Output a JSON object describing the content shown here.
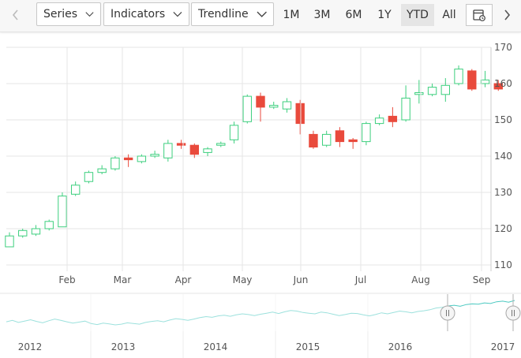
{
  "toolbar": {
    "series_label": "Series",
    "indicators_label": "Indicators",
    "trendline_label": "Trendline",
    "ranges": [
      "1M",
      "3M",
      "6M",
      "1Y",
      "YTD",
      "All"
    ],
    "selected_range": "YTD",
    "left_arrow_icon": "chevron-left-icon",
    "right_arrow_icon": "chevron-right-icon",
    "calendar_icon": "calendar-icon"
  },
  "colors": {
    "up": "#3dcf7e",
    "down": "#e94a3c",
    "navigator_line": "#4cc9c1",
    "grid": "#e6e6e6"
  },
  "chart_data": {
    "type": "candlestick",
    "y_axis": {
      "ylim": [
        110,
        170
      ],
      "ticks": [
        110,
        120,
        130,
        140,
        150,
        160,
        170
      ],
      "position": "right"
    },
    "x_axis": {
      "tick_labels": [
        "Feb",
        "Mar",
        "Apr",
        "May",
        "Jun",
        "Jul",
        "Aug",
        "Sep"
      ]
    },
    "grid": true,
    "candles": [
      {
        "open": 115,
        "close": 118,
        "high": 119,
        "low": 115
      },
      {
        "open": 118,
        "close": 119.5,
        "high": 120,
        "low": 117.5
      },
      {
        "open": 118.5,
        "close": 120,
        "high": 121,
        "low": 118
      },
      {
        "open": 120,
        "close": 122,
        "high": 122.5,
        "low": 119.5
      },
      {
        "open": 120.5,
        "close": 129,
        "high": 130,
        "low": 120.5
      },
      {
        "open": 129.5,
        "close": 132,
        "high": 133,
        "low": 129
      },
      {
        "open": 133,
        "close": 135.5,
        "high": 136,
        "low": 132.5
      },
      {
        "open": 135.5,
        "close": 136.5,
        "high": 137.5,
        "low": 135
      },
      {
        "open": 136.5,
        "close": 139.5,
        "high": 140,
        "low": 136
      },
      {
        "open": 139.5,
        "close": 139,
        "high": 140.5,
        "low": 137
      },
      {
        "open": 138.5,
        "close": 140,
        "high": 140.5,
        "low": 138
      },
      {
        "open": 140,
        "close": 140.5,
        "high": 141.5,
        "low": 139.5
      },
      {
        "open": 139.5,
        "close": 143.5,
        "high": 144.5,
        "low": 138.5
      },
      {
        "open": 143.5,
        "close": 143,
        "high": 144.5,
        "low": 142
      },
      {
        "open": 143,
        "close": 140.5,
        "high": 143.5,
        "low": 139.5
      },
      {
        "open": 141,
        "close": 142,
        "high": 142.5,
        "low": 140
      },
      {
        "open": 143,
        "close": 143.5,
        "high": 144,
        "low": 142.5
      },
      {
        "open": 144.5,
        "close": 148.5,
        "high": 149.5,
        "low": 143.5
      },
      {
        "open": 149.5,
        "close": 156.5,
        "high": 157,
        "low": 149
      },
      {
        "open": 156.5,
        "close": 153.5,
        "high": 157.5,
        "low": 149.5
      },
      {
        "open": 153.5,
        "close": 154,
        "high": 155,
        "low": 153
      },
      {
        "open": 153,
        "close": 155,
        "high": 156,
        "low": 152
      },
      {
        "open": 154.5,
        "close": 149,
        "high": 155.5,
        "low": 146
      },
      {
        "open": 146,
        "close": 142.5,
        "high": 147,
        "low": 142
      },
      {
        "open": 143,
        "close": 146,
        "high": 147,
        "low": 142.5
      },
      {
        "open": 147,
        "close": 144,
        "high": 148,
        "low": 142.5
      },
      {
        "open": 144.5,
        "close": 144,
        "high": 145,
        "low": 142
      },
      {
        "open": 144,
        "close": 149,
        "high": 149.5,
        "low": 143
      },
      {
        "open": 149,
        "close": 150.5,
        "high": 151.5,
        "low": 148.5
      },
      {
        "open": 151,
        "close": 149.5,
        "high": 153.5,
        "low": 148
      },
      {
        "open": 150,
        "close": 156,
        "high": 159.5,
        "low": 149.5
      },
      {
        "open": 157,
        "close": 157.5,
        "high": 161,
        "low": 154.5
      },
      {
        "open": 157,
        "close": 159,
        "high": 160,
        "low": 156.5
      },
      {
        "open": 157,
        "close": 159.5,
        "high": 161.5,
        "low": 155
      },
      {
        "open": 160,
        "close": 164,
        "high": 165,
        "low": 159.5
      },
      {
        "open": 163.5,
        "close": 158.5,
        "high": 164,
        "low": 158
      },
      {
        "open": 160,
        "close": 161,
        "high": 163.5,
        "low": 159
      },
      {
        "open": 160,
        "close": 158.5,
        "high": 161,
        "low": 158
      }
    ],
    "navigator": {
      "x_labels": [
        "2012",
        "2013",
        "2014",
        "2015",
        "2016",
        "2017"
      ],
      "values": [
        100,
        104,
        98,
        102,
        106,
        101,
        97,
        103,
        108,
        104,
        100,
        96,
        99,
        102,
        95,
        92,
        96,
        94,
        91,
        93,
        97,
        95,
        93,
        98,
        101,
        103,
        100,
        105,
        109,
        107,
        104,
        108,
        112,
        115,
        113,
        117,
        119,
        116,
        120,
        123,
        121,
        118,
        122,
        125,
        128,
        124,
        129,
        133,
        131,
        127,
        125,
        123,
        128,
        126,
        122,
        118,
        121,
        125,
        124,
        120,
        117,
        121,
        126,
        123,
        127,
        131,
        129,
        126,
        130,
        132,
        135,
        140,
        142,
        146,
        148,
        145,
        150,
        152,
        151,
        155,
        153,
        158,
        160,
        157,
        162
      ]
    }
  }
}
